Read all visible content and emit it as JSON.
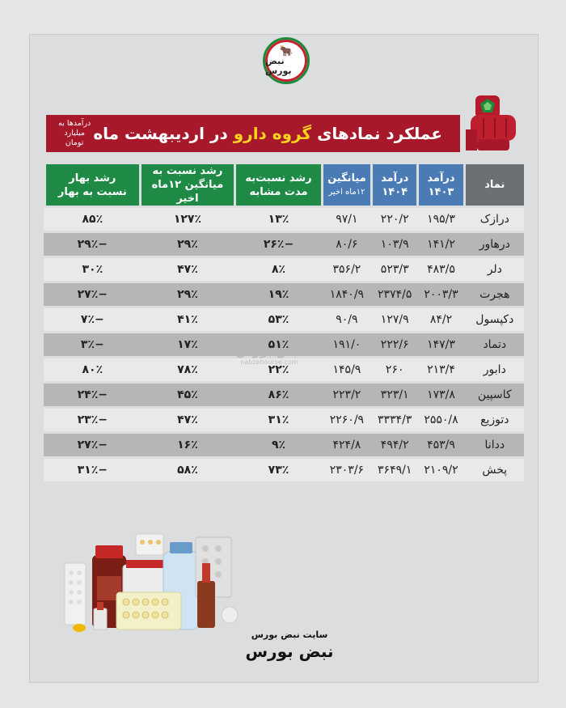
{
  "logo": {
    "text": "نبض بورس"
  },
  "banner": {
    "title_part1": "عملکرد نمادهای",
    "title_highlight": "گروه دارو",
    "title_part2": "در اردیبهشت ماه",
    "unit_line1": "درآمدها به",
    "unit_line2": "میلیارد تومان"
  },
  "headers": {
    "name": "نماد",
    "rev1403_a": "درآمد",
    "rev1403_b": "۱۴۰۳",
    "rev1404_a": "درآمد",
    "rev1404_b": "۱۴۰۴",
    "avg_a": "میانگین",
    "avg_b": "۱۲ماه اخیر",
    "g1_a": "رشد نسبت‌به",
    "g1_b": "مدت مشابه",
    "g2_a": "رشد نسبت به",
    "g2_b": "میانگین ۱۲ماه اخیر",
    "g3_a": "رشد بهار",
    "g3_b": "نسبت به بهار"
  },
  "rows": [
    {
      "name": "درازک",
      "rev1403": "۱۹۵/۳",
      "rev1404": "۲۲۰/۲",
      "avg": "۹۷/۱",
      "g1": "۱۳٪",
      "g2": "۱۲۷٪",
      "g3": "۸۵٪"
    },
    {
      "name": "درهاور",
      "rev1403": "۱۴۱/۲",
      "rev1404": "۱۰۳/۹",
      "avg": "۸۰/۶",
      "g1": "−۲۶٪",
      "g2": "۲۹٪",
      "g3": "−۲۹٪"
    },
    {
      "name": "دلر",
      "rev1403": "۴۸۳/۵",
      "rev1404": "۵۲۳/۳",
      "avg": "۳۵۶/۲",
      "g1": "۸٪",
      "g2": "۴۷٪",
      "g3": "۳۰٪"
    },
    {
      "name": "هجرت",
      "rev1403": "۲۰۰۳/۳",
      "rev1404": "۲۳۷۴/۵",
      "avg": "۱۸۴۰/۹",
      "g1": "۱۹٪",
      "g2": "۲۹٪",
      "g3": "−۲۷٪"
    },
    {
      "name": "دکپسول",
      "rev1403": "۸۴/۲",
      "rev1404": "۱۲۷/۹",
      "avg": "۹۰/۹",
      "g1": "۵۳٪",
      "g2": "۴۱٪",
      "g3": "−۷٪"
    },
    {
      "name": "دتماد",
      "rev1403": "۱۴۷/۳",
      "rev1404": "۲۲۲/۶",
      "avg": "۱۹۱/۰",
      "g1": "۵۱٪",
      "g2": "۱۷٪",
      "g3": "−۳٪"
    },
    {
      "name": "دابور",
      "rev1403": "۲۱۳/۴",
      "rev1404": "۲۶۰",
      "avg": "۱۴۵/۹",
      "g1": "۲۲٪",
      "g2": "۷۸٪",
      "g3": "۸۰٪"
    },
    {
      "name": "کاسپین",
      "rev1403": "۱۷۳/۸",
      "rev1404": "۳۲۳/۱",
      "avg": "۲۲۳/۲",
      "g1": "۸۶٪",
      "g2": "۴۵٪",
      "g3": "−۲۴٪"
    },
    {
      "name": "دتوزیع",
      "rev1403": "۲۵۵۰/۸",
      "rev1404": "۳۳۳۴/۳",
      "avg": "۲۲۶۰/۹",
      "g1": "۳۱٪",
      "g2": "۴۷٪",
      "g3": "−۲۳٪"
    },
    {
      "name": "ددانا",
      "rev1403": "۴۵۳/۹",
      "rev1404": "۴۹۴/۲",
      "avg": "۴۲۴/۸",
      "g1": "۹٪",
      "g2": "۱۶٪",
      "g3": "−۲۷٪"
    },
    {
      "name": "پخش",
      "rev1403": "۲۱۰۹/۲",
      "rev1404": "۳۶۴۹/۱",
      "avg": "۲۳۰۳/۶",
      "g1": "۷۳٪",
      "g2": "۵۸٪",
      "g3": "−۳۱٪"
    }
  ],
  "watermark": {
    "text": "نبض بورس",
    "url": "nabzebourse.com"
  },
  "footer": {
    "site_label": "سایت نبض بورس",
    "brand": "نبض بورس"
  },
  "colors": {
    "positive": "#1c7a3a",
    "negative": "#b71c2a",
    "banner": "#a6182a",
    "header_blue": "#4a7bb5",
    "header_green": "#1e8a46"
  }
}
